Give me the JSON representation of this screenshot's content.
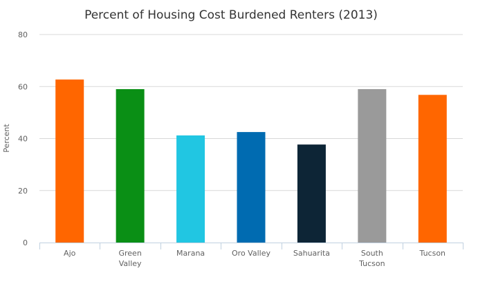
{
  "chart_data": {
    "type": "bar",
    "title": "Percent of Housing Cost Burdened Renters (2013)",
    "ylabel": "Percent",
    "xlabel": "",
    "ylim": [
      0,
      80
    ],
    "yticks": [
      "0",
      "20",
      "40",
      "60",
      "80"
    ],
    "grid": true,
    "legend": "none",
    "categories": [
      [
        "Ajo"
      ],
      [
        "Green",
        "Valley"
      ],
      [
        "Marana"
      ],
      [
        "Oro Valley"
      ],
      [
        "Sahuarita"
      ],
      [
        "South",
        "Tucson"
      ],
      [
        "Tucson"
      ]
    ],
    "values": [
      62.7,
      59.0,
      41.2,
      42.5,
      37.7,
      59.0,
      56.8
    ],
    "colors": [
      "#FF6600",
      "#0A8F15",
      "#21C6E2",
      "#006BB1",
      "#0D2536",
      "#9A9A9A",
      "#FF6600"
    ]
  }
}
